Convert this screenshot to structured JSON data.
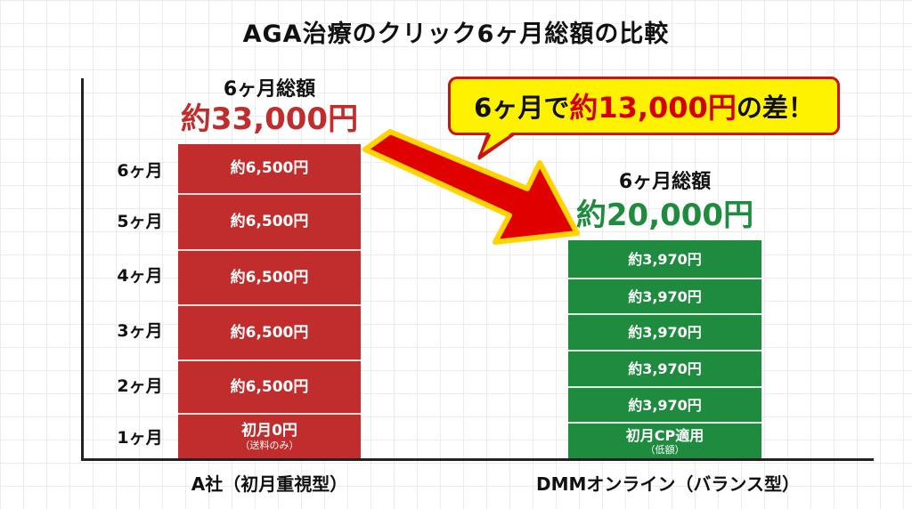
{
  "chart_data": {
    "type": "bar",
    "title": "AGA治療のクリック6ヶ月総額の比較",
    "y_tick_labels": [
      "6ヶ月",
      "5ヶ月",
      "4ヶ月",
      "3ヶ月",
      "2ヶ月",
      "1ヶ月"
    ],
    "categories": [
      "A社（初月重視型）",
      "DMMオンライン（バランス型）"
    ],
    "series": [
      {
        "total_label": "6ヶ月総額",
        "total_value": "約33,000円",
        "colors": {
          "bar": "#c12c2c",
          "total": "#c12c2c"
        },
        "segments": [
          {
            "label": "約6,500円",
            "value": 6500
          },
          {
            "label": "約6,500円",
            "value": 6500
          },
          {
            "label": "約6,500円",
            "value": 6500
          },
          {
            "label": "約6,500円",
            "value": 6500
          },
          {
            "label": "約6,500円",
            "value": 6500
          },
          {
            "label": "初月0円",
            "note": "（送料のみ）",
            "value": 0
          }
        ]
      },
      {
        "total_label": "6ヶ月総額",
        "total_value": "約20,000円",
        "colors": {
          "bar": "#1e8b3f",
          "total": "#1e8b3f"
        },
        "segments": [
          {
            "label": "約3,970円",
            "value": 3970
          },
          {
            "label": "約3,970円",
            "value": 3970
          },
          {
            "label": "約3,970円",
            "value": 3970
          },
          {
            "label": "約3,970円",
            "value": 3970
          },
          {
            "label": "約3,970円",
            "value": 3970
          },
          {
            "label": "初月CP適用",
            "note": "（低額）",
            "value": 0
          }
        ]
      }
    ],
    "grid": true
  },
  "callout": {
    "prefix": "6ヶ月で",
    "highlight": "約13,000円",
    "suffix": "の差！",
    "colors": {
      "fill": "#fff200",
      "border": "#cc1111",
      "highlight": "#d40000"
    }
  },
  "arrow": {
    "icon": "big-right-down-arrow",
    "colors": {
      "fill": "#e00000",
      "stroke": "#ffd400"
    }
  }
}
